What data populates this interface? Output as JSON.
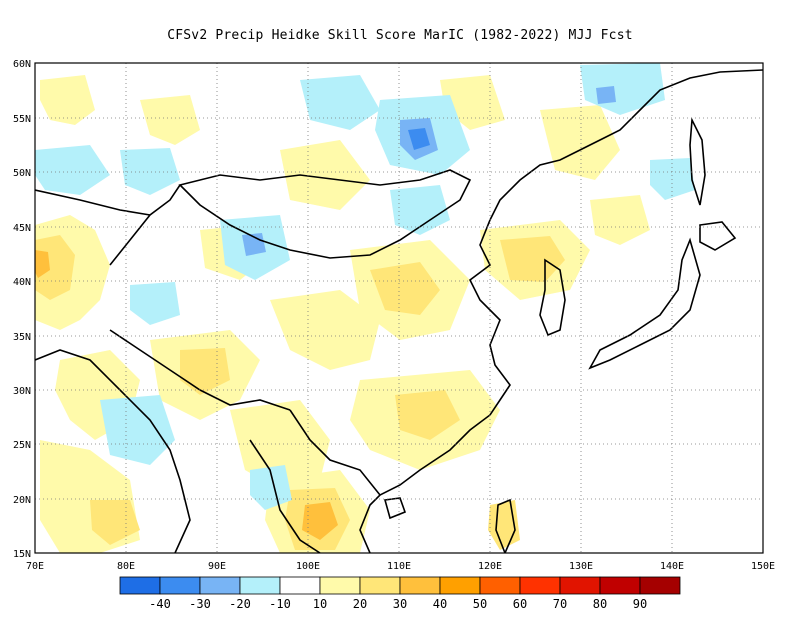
{
  "title": "CFSv2 Precip Heidke Skill Score MarIC (1982-2022) MJJ Fcst",
  "map": {
    "lon_range": [
      70,
      150
    ],
    "lat_range": [
      15,
      60
    ],
    "lon_ticks": [
      "70E",
      "80E",
      "90E",
      "100E",
      "110E",
      "120E",
      "130E",
      "140E",
      "150E"
    ],
    "lat_ticks": [
      "15N",
      "20N",
      "25N",
      "30N",
      "35N",
      "40N",
      "45N",
      "50N",
      "55N",
      "60N"
    ],
    "grid": "dotted",
    "coastline_color": "#000000"
  },
  "legend": {
    "colors": [
      "#1e6ee6",
      "#3c8cf0",
      "#78b4f5",
      "#b4f0fa",
      "#ffffff",
      "#fffaaa",
      "#ffe678",
      "#ffc03c",
      "#ffa000",
      "#ff6000",
      "#ff3200",
      "#e11400",
      "#c00000",
      "#a50000"
    ],
    "labels": [
      "-40",
      "-30",
      "-20",
      "-10",
      "10",
      "20",
      "30",
      "40",
      "50",
      "60",
      "70",
      "80",
      "90"
    ]
  },
  "colors": {
    "light_blue": "#b4f0fa",
    "mid_blue": "#78b4f5",
    "blue": "#3c8cf0",
    "pale_yellow": "#fffaaa",
    "yellow": "#ffe678",
    "orange": "#ffc03c",
    "deep_orange": "#ffa000",
    "red_orange": "#ff6000"
  }
}
